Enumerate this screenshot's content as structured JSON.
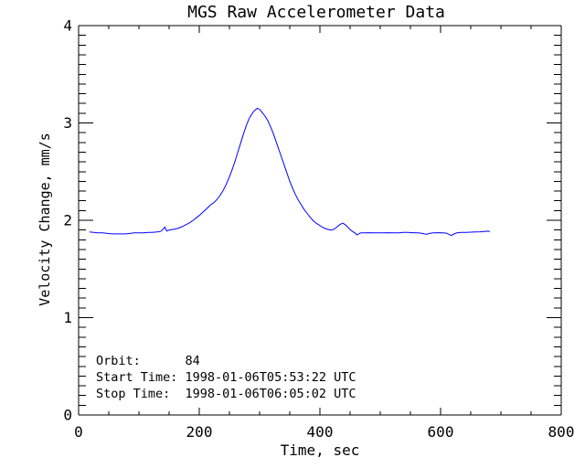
{
  "chart_data": {
    "type": "line",
    "title": "MGS Raw Accelerometer Data",
    "xlabel": "Time, sec",
    "ylabel": "Velocity Change, mm/s",
    "xlim": [
      0,
      800
    ],
    "ylim": [
      0,
      4
    ],
    "xticks": [
      0,
      200,
      400,
      600,
      800
    ],
    "yticks": [
      0,
      1,
      2,
      3,
      4
    ],
    "x_minor_step": 50,
    "y_minor_step": 0.1,
    "grid": false,
    "legend": false,
    "background": "#ffffff",
    "axis_color": "#000000",
    "line_color": "#0000ff",
    "annotations": {
      "orbit": "Orbit:      84",
      "start": "Start Time: 1998-01-06T05:53:22 UTC",
      "stop": "Stop Time:  1998-01-06T06:05:02 UTC"
    },
    "series": [
      {
        "name": "Velocity Change",
        "x": [
          18,
          25,
          32,
          40,
          48,
          55,
          62,
          70,
          78,
          85,
          92,
          100,
          108,
          115,
          122,
          130,
          136,
          140,
          143,
          146,
          150,
          155,
          160,
          166,
          172,
          178,
          184,
          190,
          196,
          202,
          208,
          214,
          219,
          224,
          229,
          234,
          239,
          244,
          249,
          254,
          259,
          264,
          269,
          274,
          279,
          284,
          288,
          292,
          296,
          300,
          304,
          309,
          314,
          319,
          324,
          329,
          334,
          339,
          344,
          349,
          354,
          359,
          364,
          369,
          374,
          379,
          384,
          389,
          394,
          399,
          404,
          409,
          414,
          419,
          424,
          429,
          434,
          438,
          442,
          446,
          450,
          454,
          458,
          461,
          464,
          468,
          474,
          482,
          490,
          498,
          506,
          514,
          522,
          530,
          538,
          546,
          554,
          562,
          568,
          573,
          577,
          581,
          588,
          596,
          604,
          610,
          614,
          618,
          622,
          627,
          634,
          642,
          650,
          658,
          666,
          672,
          678,
          682
        ],
        "y": [
          1.88,
          1.875,
          1.87,
          1.87,
          1.865,
          1.86,
          1.86,
          1.86,
          1.86,
          1.865,
          1.87,
          1.87,
          1.87,
          1.875,
          1.875,
          1.88,
          1.885,
          1.91,
          1.93,
          1.89,
          1.9,
          1.905,
          1.91,
          1.92,
          1.935,
          1.955,
          1.975,
          2.0,
          2.03,
          2.06,
          2.095,
          2.13,
          2.16,
          2.18,
          2.21,
          2.25,
          2.3,
          2.36,
          2.43,
          2.51,
          2.6,
          2.7,
          2.8,
          2.9,
          2.99,
          3.06,
          3.1,
          3.13,
          3.15,
          3.14,
          3.11,
          3.07,
          3.02,
          2.95,
          2.87,
          2.78,
          2.69,
          2.6,
          2.51,
          2.42,
          2.34,
          2.27,
          2.21,
          2.16,
          2.11,
          2.07,
          2.03,
          1.995,
          1.97,
          1.95,
          1.93,
          1.915,
          1.905,
          1.9,
          1.91,
          1.935,
          1.96,
          1.97,
          1.955,
          1.93,
          1.905,
          1.885,
          1.87,
          1.85,
          1.86,
          1.87,
          1.87,
          1.872,
          1.87,
          1.87,
          1.87,
          1.872,
          1.87,
          1.87,
          1.875,
          1.875,
          1.872,
          1.87,
          1.868,
          1.86,
          1.855,
          1.865,
          1.87,
          1.872,
          1.87,
          1.868,
          1.855,
          1.843,
          1.858,
          1.87,
          1.875,
          1.875,
          1.878,
          1.88,
          1.882,
          1.885,
          1.888,
          1.885
        ]
      }
    ]
  }
}
